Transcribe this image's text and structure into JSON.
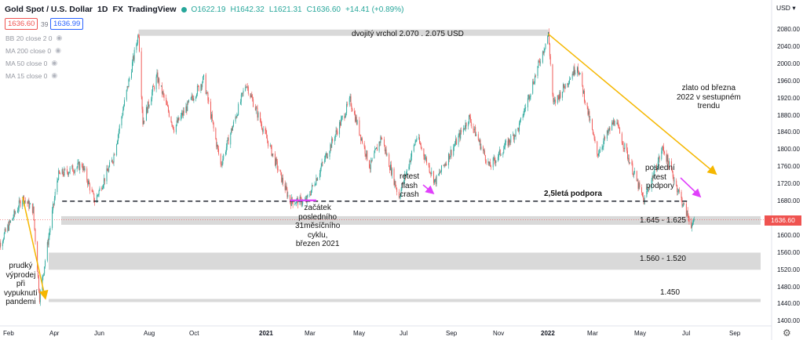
{
  "header": {
    "symbol": "Gold Spot / U.S. Dollar",
    "interval": "1D",
    "source": "FX",
    "provider": "TradingView",
    "open": "O1622.19",
    "high": "H1642.32",
    "low": "L1621.31",
    "close": "C1636.60",
    "change": "+14.41 (+0.89%)",
    "sell_price": "1636.60",
    "spread": "39",
    "buy_price": "1636.99",
    "status_color": "#26a69a"
  },
  "indicators": [
    {
      "label": "BB 20 close 2 0"
    },
    {
      "label": "MA 200 close 0"
    },
    {
      "label": "MA 50 close 0"
    },
    {
      "label": "MA 15 close 0"
    }
  ],
  "price_axis": {
    "currency": "USD",
    "labels": [
      "2080.00",
      "2040.00",
      "2000.00",
      "1960.00",
      "1920.00",
      "1880.00",
      "1840.00",
      "1800.00",
      "1760.00",
      "1720.00",
      "1680.00",
      "1640.00",
      "1600.00",
      "1560.00",
      "1520.00",
      "1480.00",
      "1440.00",
      "1400.00"
    ],
    "current_price": "1636.60",
    "current_price_color": "#ef5350"
  },
  "time_axis": {
    "labels": [
      {
        "text": "Feb",
        "bold": false
      },
      {
        "text": "Apr",
        "bold": false
      },
      {
        "text": "Jun",
        "bold": false
      },
      {
        "text": "Aug",
        "bold": false
      },
      {
        "text": "Oct",
        "bold": false
      },
      {
        "text": "2021",
        "bold": true
      },
      {
        "text": "Mar",
        "bold": false
      },
      {
        "text": "May",
        "bold": false
      },
      {
        "text": "Jul",
        "bold": false
      },
      {
        "text": "Sep",
        "bold": false
      },
      {
        "text": "Nov",
        "bold": false
      },
      {
        "text": "2022",
        "bold": true
      },
      {
        "text": "Mar",
        "bold": false
      },
      {
        "text": "May",
        "bold": false
      },
      {
        "text": "Jul",
        "bold": false
      },
      {
        "text": "Sep",
        "bold": false
      }
    ]
  },
  "annotations": {
    "double_top": "dvojitý vrchol 2.070 . 2.075 USD",
    "trend": [
      "zlato od března",
      "2022 v sestupném",
      "trendu"
    ],
    "support": "2,5letá podpora",
    "retest": [
      "retest",
      "flash",
      "crash"
    ],
    "last_test": [
      "poslední",
      "test",
      "podpory"
    ],
    "cycle": [
      "začátek",
      "posledního",
      "31měsíčního",
      "cyklu,",
      "březen 2021"
    ],
    "selloff": [
      "prudký",
      "výprodej",
      "při",
      "vypuknutí",
      "pandemi"
    ],
    "zone1": "1.645 - 1.625",
    "zone2": "1.560 - 1.520",
    "zone3": "1.450"
  },
  "chart_data": {
    "type": "candlestick",
    "symbol": "XAUUSD",
    "interval": "1D",
    "ylim": [
      1400,
      2100
    ],
    "colors": {
      "up": "#26a69a",
      "down": "#ef5350",
      "trendline": "#f5b700",
      "arrow": "#e040fb",
      "support": "#131722",
      "zone": "#d9d9d9"
    },
    "price_path": [
      {
        "date": "2020-01-15",
        "price": 1555
      },
      {
        "date": "2020-02-24",
        "price": 1688
      },
      {
        "date": "2020-03-10",
        "price": 1660
      },
      {
        "date": "2020-03-19",
        "price": 1455
      },
      {
        "date": "2020-04-14",
        "price": 1740
      },
      {
        "date": "2020-05-18",
        "price": 1765
      },
      {
        "date": "2020-06-05",
        "price": 1680
      },
      {
        "date": "2020-07-01",
        "price": 1780
      },
      {
        "date": "2020-08-06",
        "price": 2073
      },
      {
        "date": "2020-08-12",
        "price": 1865
      },
      {
        "date": "2020-09-01",
        "price": 1970
      },
      {
        "date": "2020-09-25",
        "price": 1850
      },
      {
        "date": "2020-11-06",
        "price": 1965
      },
      {
        "date": "2020-11-30",
        "price": 1765
      },
      {
        "date": "2021-01-05",
        "price": 1955
      },
      {
        "date": "2021-03-08",
        "price": 1680
      },
      {
        "date": "2021-03-31",
        "price": 1680
      },
      {
        "date": "2021-06-01",
        "price": 1915
      },
      {
        "date": "2021-06-29",
        "price": 1760
      },
      {
        "date": "2021-07-15",
        "price": 1830
      },
      {
        "date": "2021-08-09",
        "price": 1690
      },
      {
        "date": "2021-09-03",
        "price": 1830
      },
      {
        "date": "2021-09-29",
        "price": 1725
      },
      {
        "date": "2021-11-16",
        "price": 1875
      },
      {
        "date": "2021-12-15",
        "price": 1760
      },
      {
        "date": "2022-01-25",
        "price": 1850
      },
      {
        "date": "2022-03-08",
        "price": 2070
      },
      {
        "date": "2022-03-15",
        "price": 1905
      },
      {
        "date": "2022-04-18",
        "price": 1998
      },
      {
        "date": "2022-05-16",
        "price": 1790
      },
      {
        "date": "2022-06-10",
        "price": 1870
      },
      {
        "date": "2022-07-21",
        "price": 1680
      },
      {
        "date": "2022-08-17",
        "price": 1805
      },
      {
        "date": "2022-09-16",
        "price": 1665
      },
      {
        "date": "2022-09-28",
        "price": 1620
      },
      {
        "date": "2022-09-30",
        "price": 1636.6
      }
    ],
    "double_top_band": {
      "from": "2020-08-06",
      "to": "2022-03-08",
      "low": 2070,
      "high": 2075
    },
    "support_line": {
      "from": "2020-04-20",
      "to": "2022-09-20",
      "price": 1680
    },
    "zones": [
      {
        "label": "1.645 - 1.625",
        "low": 1625,
        "high": 1645
      },
      {
        "label": "1.560 - 1.520",
        "low": 1520,
        "high": 1560
      },
      {
        "label": "1.450",
        "low": 1445,
        "high": 1452
      }
    ],
    "trendline": {
      "from": {
        "date": "2022-03-08",
        "price": 2070
      },
      "to": {
        "date": "2022-10-30",
        "price": 1745
      }
    }
  }
}
